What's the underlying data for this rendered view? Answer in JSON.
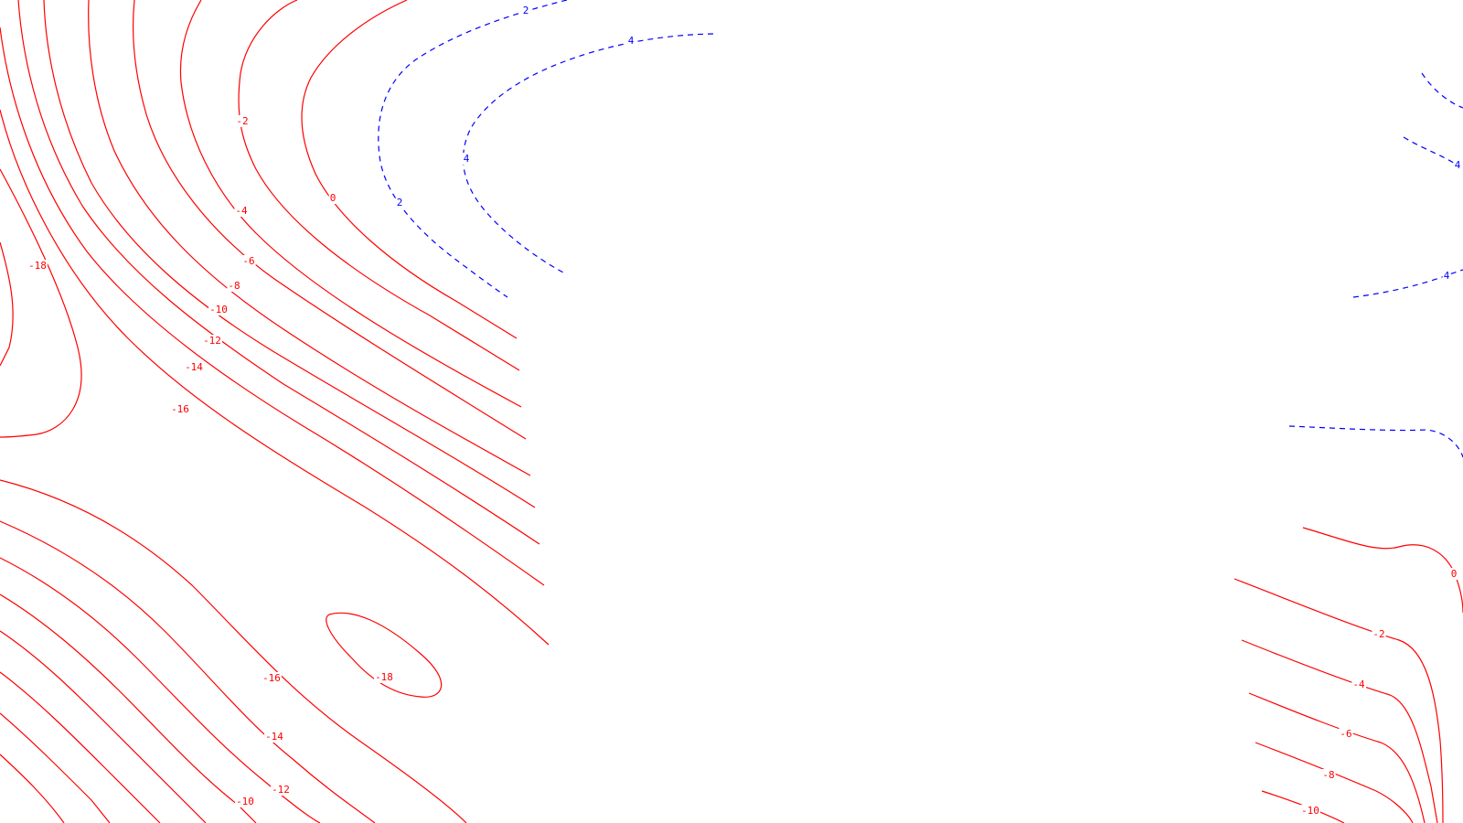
{
  "chart_data": {
    "type": "contour",
    "title": "",
    "xlabel": "",
    "ylabel": "",
    "grid": false,
    "legend": "none",
    "colors": {
      "negative": "#ff0000",
      "positive": "#0000ff"
    },
    "line_styles": {
      "negative": "solid",
      "positive": "dashed"
    },
    "levels": [
      -18,
      -16,
      -14,
      -12,
      -10,
      -8,
      -6,
      -4,
      -2,
      0,
      2,
      4
    ],
    "labels": [
      {
        "text": "2",
        "value": 2
      },
      {
        "text": "4",
        "value": 4
      },
      {
        "text": "-2",
        "value": -2
      },
      {
        "text": "0",
        "value": 0
      },
      {
        "text": "4",
        "value": 4
      },
      {
        "text": "2",
        "value": 2
      },
      {
        "text": "-4",
        "value": -4
      },
      {
        "text": "-6",
        "value": -6
      },
      {
        "text": "-8",
        "value": -8
      },
      {
        "text": "-10",
        "value": -10
      },
      {
        "text": "-12",
        "value": -12
      },
      {
        "text": "-14",
        "value": -14
      },
      {
        "text": "-16",
        "value": -16
      },
      {
        "text": "-18",
        "value": -18
      },
      {
        "text": "-16",
        "value": -16
      },
      {
        "text": "-18",
        "value": -18
      },
      {
        "text": "-14",
        "value": -14
      },
      {
        "text": "-12",
        "value": -12
      },
      {
        "text": "-10",
        "value": -10
      },
      {
        "text": "4",
        "value": 4
      },
      {
        "text": "4",
        "value": 4
      },
      {
        "text": "0",
        "value": 0
      },
      {
        "text": "-2",
        "value": -2
      },
      {
        "text": "-4",
        "value": -4
      },
      {
        "text": "-6",
        "value": -6
      },
      {
        "text": "-8",
        "value": -8
      },
      {
        "text": "-10",
        "value": -10
      }
    ]
  }
}
